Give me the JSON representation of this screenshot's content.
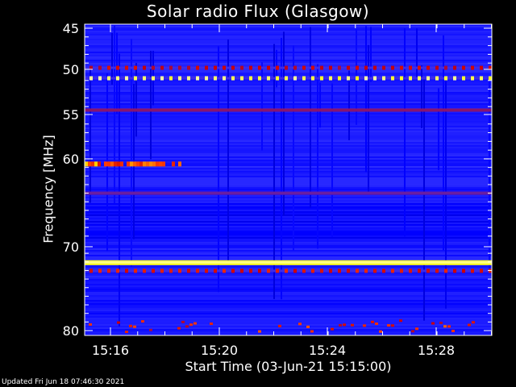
{
  "chart_data": {
    "type": "heatmap",
    "title": "Solar radio Flux (Glasgow)",
    "xlabel": "Start Time (03-Jun-21 15:15:00)",
    "ylabel": "Frequency [MHz]",
    "y_ticks": [
      {
        "value": 45,
        "label": "45"
      },
      {
        "value": 50,
        "label": "50"
      },
      {
        "value": 55,
        "label": "55"
      },
      {
        "value": 60,
        "label": "60"
      },
      {
        "value": 70,
        "label": "70"
      },
      {
        "value": 80,
        "label": "80"
      }
    ],
    "x_ticks": [
      "15:16",
      "15:20",
      "15:24",
      "15:28"
    ],
    "emission_bands_mhz": [
      {
        "freq": 49.5,
        "intensity": 0.55,
        "pattern": "dotted"
      },
      {
        "freq": 50.7,
        "intensity": 0.95,
        "pattern": "dotted"
      },
      {
        "freq": 54.4,
        "intensity": 0.35,
        "pattern": "solid"
      },
      {
        "freq": 60.6,
        "intensity": 0.8,
        "pattern": "partial"
      },
      {
        "freq": 64.0,
        "intensity": 0.3,
        "pattern": "solid"
      },
      {
        "freq": 72.0,
        "intensity": 1.0,
        "pattern": "solid"
      },
      {
        "freq": 73.0,
        "intensity": 0.6,
        "pattern": "dotted"
      }
    ],
    "colormap": [
      "#000088",
      "#0000ff",
      "#3030ff",
      "#cc0000",
      "#ff4000",
      "#ffff00",
      "#ffffff"
    ]
  },
  "footer": {
    "updated": "Updated Fri Jun 18 07:46:30 2021"
  }
}
